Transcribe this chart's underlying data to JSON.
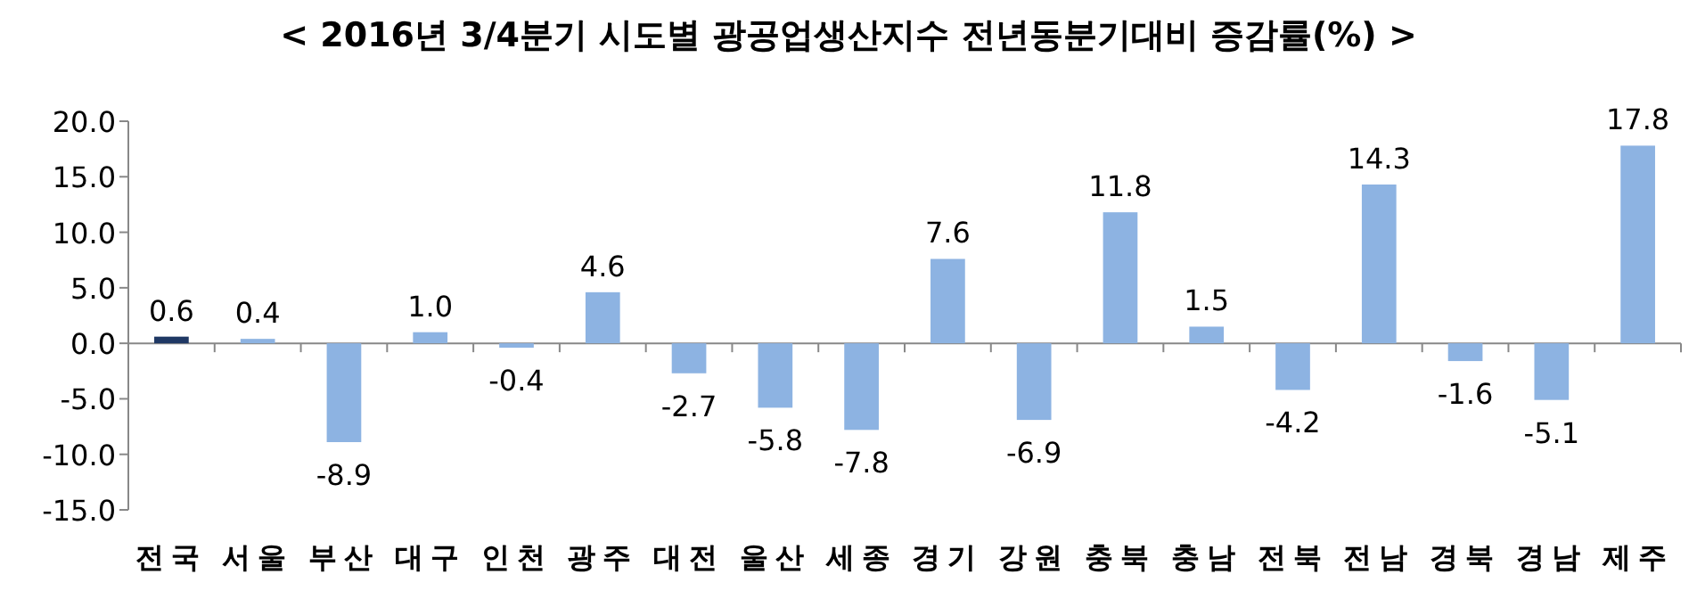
{
  "chart_data": {
    "type": "bar",
    "title": "< 2016년 3/4분기 시도별 광공업생산지수 전년동분기대비 증감률(%) >",
    "categories": [
      "전국",
      "서울",
      "부산",
      "대구",
      "인천",
      "광주",
      "대전",
      "울산",
      "세종",
      "경기",
      "강원",
      "충북",
      "충남",
      "전북",
      "전남",
      "경북",
      "경남",
      "제주"
    ],
    "values": [
      0.6,
      0.4,
      -8.9,
      1.0,
      -0.4,
      4.6,
      -2.7,
      -5.8,
      -7.8,
      7.6,
      -6.9,
      11.8,
      1.5,
      -4.2,
      14.3,
      -1.6,
      -5.1,
      17.8
    ],
    "colors": [
      "#1f3864",
      "#8db3e2",
      "#8db3e2",
      "#8db3e2",
      "#8db3e2",
      "#8db3e2",
      "#8db3e2",
      "#8db3e2",
      "#8db3e2",
      "#8db3e2",
      "#8db3e2",
      "#8db3e2",
      "#8db3e2",
      "#8db3e2",
      "#8db3e2",
      "#8db3e2",
      "#8db3e2",
      "#8db3e2"
    ],
    "ylim": [
      -15,
      20
    ],
    "yticks": [
      {
        "value": 20,
        "label": "20.0"
      },
      {
        "value": 15,
        "label": "15.0"
      },
      {
        "value": 10,
        "label": "10.0"
      },
      {
        "value": 5,
        "label": "5.0"
      },
      {
        "value": 0,
        "label": "0.0"
      },
      {
        "value": -5,
        "label": "-5.0"
      },
      {
        "value": -10,
        "label": "-10.0"
      },
      {
        "value": -15,
        "label": "-15.0"
      }
    ],
    "value_labels": [
      "0.6",
      "0.4",
      "-8.9",
      "1.0",
      "-0.4",
      "4.6",
      "-2.7",
      "-5.8",
      "-7.8",
      "7.6",
      "-6.9",
      "11.8",
      "1.5",
      "-4.2",
      "14.3",
      "-1.6",
      "-5.1",
      "17.8"
    ]
  }
}
